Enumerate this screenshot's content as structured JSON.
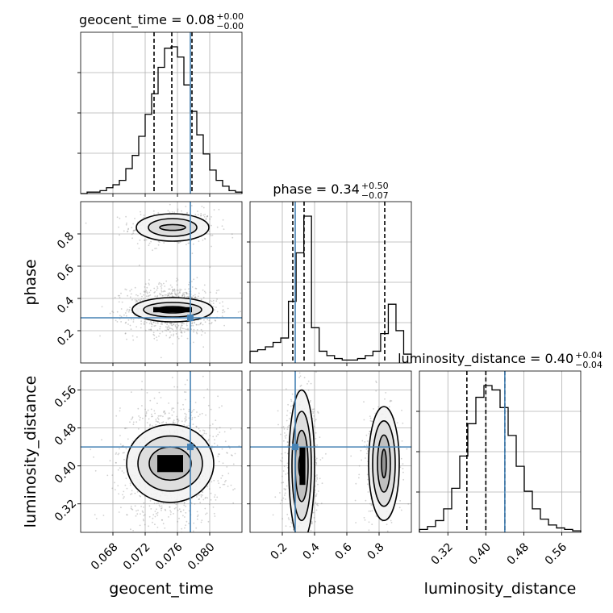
{
  "chart_data": {
    "type": "corner",
    "parameters": [
      {
        "name": "geocent_time",
        "xlabel": "geocent_time",
        "range": [
          0.064,
          0.084
        ],
        "ticks": [
          "0.068",
          "0.072",
          "0.076",
          "0.080"
        ],
        "tick_values": [
          0.068,
          0.072,
          0.076,
          0.08
        ],
        "truth": 0.0776,
        "quantiles": [
          0.0731,
          0.0753,
          0.0778
        ],
        "title_lhs": "geocent_time = 0.08",
        "title_sup": "+0.00",
        "title_sub": "−0.00"
      },
      {
        "name": "phase",
        "xlabel": "phase",
        "ylabel": "phase",
        "range": [
          0.0,
          1.0
        ],
        "ticks": [
          "0.2",
          "0.4",
          "0.6",
          "0.8"
        ],
        "tick_values": [
          0.2,
          0.4,
          0.6,
          0.8
        ],
        "truth": 0.28,
        "quantiles": [
          0.265,
          0.335,
          0.835
        ],
        "title_lhs": "phase = 0.34",
        "title_sup": "+0.50",
        "title_sub": "−0.07"
      },
      {
        "name": "luminosity_distance",
        "xlabel": "luminosity_distance",
        "ylabel": "luminosity_distance",
        "range": [
          0.26,
          0.6
        ],
        "ticks": [
          "0.32",
          "0.40",
          "0.48",
          "0.56"
        ],
        "tick_values": [
          0.32,
          0.4,
          0.48,
          0.56
        ],
        "truth": 0.44,
        "quantiles": [
          0.36,
          0.4,
          0.44
        ],
        "title_lhs": "luminosity_distance = 0.40",
        "title_sup": "+0.04",
        "title_sub": "−0.04"
      }
    ],
    "histograms": [
      {
        "param": "geocent_time",
        "values": [
          0,
          1,
          1,
          2,
          4,
          6,
          9,
          17,
          26,
          39,
          54,
          68,
          86,
          99,
          100,
          93,
          74,
          56,
          40,
          27,
          16,
          9,
          5,
          2,
          1
        ]
      },
      {
        "param": "phase",
        "values": [
          8,
          9,
          11,
          14,
          17,
          42,
          75,
          100,
          24,
          8,
          5,
          3,
          2,
          2,
          3,
          5,
          8,
          20,
          40,
          22,
          6
        ]
      },
      {
        "param": "luminosity_distance",
        "values": [
          2,
          4,
          8,
          16,
          30,
          52,
          74,
          92,
          100,
          97,
          85,
          66,
          45,
          28,
          16,
          9,
          5,
          3,
          2,
          1
        ]
      }
    ]
  }
}
